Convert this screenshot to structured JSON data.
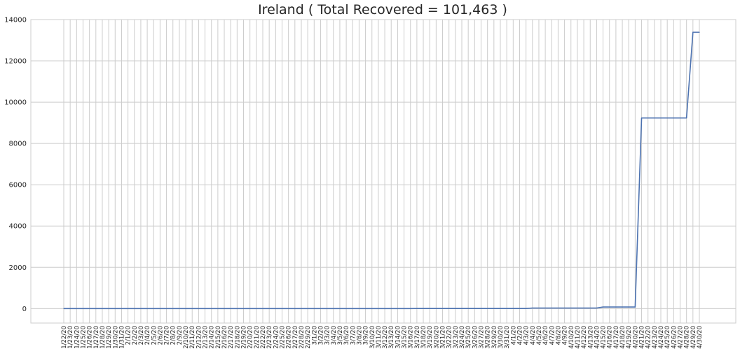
{
  "chart_data": {
    "type": "line",
    "title": "Ireland ( Total Recovered = 101,463 )",
    "xlabel": "",
    "ylabel": "",
    "ylim": [
      -700,
      14000
    ],
    "yticks": [
      0,
      2000,
      4000,
      6000,
      8000,
      10000,
      12000,
      14000
    ],
    "grid": true,
    "line_color": "#4c72b0",
    "grid_color": "#cccccc",
    "x": [
      "1/22/20",
      "1/23/20",
      "1/24/20",
      "1/25/20",
      "1/26/20",
      "1/27/20",
      "1/28/20",
      "1/29/20",
      "1/30/20",
      "1/31/20",
      "2/1/20",
      "2/2/20",
      "2/3/20",
      "2/4/20",
      "2/5/20",
      "2/6/20",
      "2/7/20",
      "2/8/20",
      "2/9/20",
      "2/10/20",
      "2/11/20",
      "2/12/20",
      "2/13/20",
      "2/14/20",
      "2/15/20",
      "2/16/20",
      "2/17/20",
      "2/18/20",
      "2/19/20",
      "2/20/20",
      "2/21/20",
      "2/22/20",
      "2/23/20",
      "2/24/20",
      "2/25/20",
      "2/26/20",
      "2/27/20",
      "2/28/20",
      "2/29/20",
      "3/1/20",
      "3/2/20",
      "3/3/20",
      "3/4/20",
      "3/5/20",
      "3/6/20",
      "3/7/20",
      "3/8/20",
      "3/9/20",
      "3/10/20",
      "3/11/20",
      "3/12/20",
      "3/13/20",
      "3/14/20",
      "3/15/20",
      "3/16/20",
      "3/17/20",
      "3/18/20",
      "3/19/20",
      "3/20/20",
      "3/21/20",
      "3/22/20",
      "3/23/20",
      "3/24/20",
      "3/25/20",
      "3/26/20",
      "3/27/20",
      "3/28/20",
      "3/29/20",
      "3/30/20",
      "3/31/20",
      "4/1/20",
      "4/2/20",
      "4/3/20",
      "4/4/20",
      "4/5/20",
      "4/6/20",
      "4/7/20",
      "4/8/20",
      "4/9/20",
      "4/10/20",
      "4/11/20",
      "4/12/20",
      "4/13/20",
      "4/14/20",
      "4/15/20",
      "4/16/20",
      "4/17/20",
      "4/18/20",
      "4/19/20",
      "4/20/20",
      "4/21/20",
      "4/22/20",
      "4/23/20",
      "4/24/20",
      "4/25/20",
      "4/26/20",
      "4/27/20",
      "4/28/20",
      "4/29/20",
      "4/30/20"
    ],
    "series": [
      {
        "values": [
          0,
          0,
          0,
          0,
          0,
          0,
          0,
          0,
          0,
          0,
          0,
          0,
          0,
          0,
          0,
          0,
          0,
          0,
          0,
          0,
          0,
          0,
          0,
          0,
          0,
          0,
          0,
          0,
          0,
          0,
          0,
          0,
          0,
          0,
          0,
          0,
          0,
          0,
          0,
          0,
          0,
          0,
          0,
          0,
          0,
          0,
          0,
          0,
          0,
          0,
          0,
          0,
          0,
          0,
          0,
          5,
          5,
          5,
          5,
          5,
          5,
          5,
          5,
          5,
          5,
          5,
          5,
          5,
          5,
          5,
          5,
          5,
          5,
          25,
          25,
          25,
          25,
          25,
          25,
          25,
          25,
          25,
          25,
          25,
          77,
          77,
          77,
          77,
          77,
          77,
          9233,
          9233,
          9233,
          9233,
          9233,
          9233,
          9233,
          9233,
          13386,
          13386
        ]
      }
    ]
  }
}
